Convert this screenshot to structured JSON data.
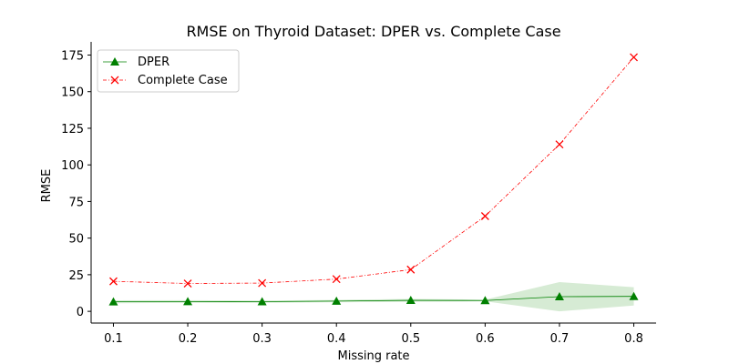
{
  "chart_data": {
    "type": "line",
    "title": "RMSE on Thyroid Dataset: DPER vs. Complete Case",
    "xlabel": "Missing rate",
    "ylabel": "RMSE",
    "x": [
      0.1,
      0.2,
      0.3,
      0.4,
      0.5,
      0.6,
      0.7,
      0.8
    ],
    "x_ticks": [
      "0.1",
      "0.2",
      "0.3",
      "0.4",
      "0.5",
      "0.6",
      "0.7",
      "0.8"
    ],
    "xlim": [
      0.07,
      0.83
    ],
    "y_ticks": [
      "0",
      "25",
      "50",
      "75",
      "100",
      "125",
      "150",
      "175"
    ],
    "ylim": [
      -8,
      184
    ],
    "grid": false,
    "legend_position": "top-left",
    "series": [
      {
        "name": "DPER",
        "values": [
          6.5,
          6.7,
          6.6,
          7.0,
          7.5,
          7.4,
          10.0,
          10.2
        ],
        "band_low": [
          5.5,
          5.8,
          5.8,
          6.2,
          6.5,
          6.8,
          0.0,
          4.0
        ],
        "band_high": [
          7.5,
          7.6,
          7.4,
          7.8,
          8.5,
          8.0,
          20.0,
          16.5
        ],
        "color": "#008000",
        "band_color": "#cfe8cc",
        "marker": "triangle",
        "line_style": "solid"
      },
      {
        "name": "Complete Case",
        "values": [
          20.5,
          19.0,
          19.3,
          22.0,
          28.5,
          65.0,
          114.0,
          173.5
        ],
        "color": "#ff0000",
        "marker": "x",
        "line_style": "dashdot"
      }
    ]
  }
}
